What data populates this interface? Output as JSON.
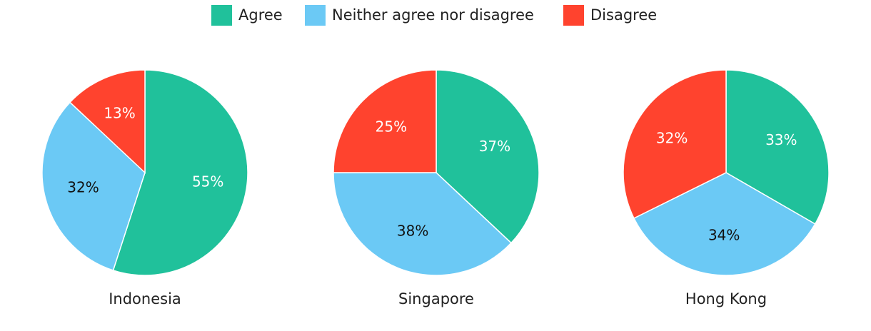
{
  "legend": {
    "categories": [
      "Agree",
      "Neither agree nor disagree",
      "Disagree"
    ],
    "colors": [
      "#20c19b",
      "#6bc9f5",
      "#ff432e"
    ]
  },
  "chart_data": [
    {
      "type": "pie",
      "title": "Indonesia",
      "values": [
        55,
        32,
        13
      ],
      "value_labels": [
        "55%",
        "32%",
        "13%"
      ]
    },
    {
      "type": "pie",
      "title": "Singapore",
      "values": [
        37,
        38,
        25
      ],
      "value_labels": [
        "37%",
        "38%",
        "25%"
      ]
    },
    {
      "type": "pie",
      "title": "Hong Kong",
      "values": [
        33,
        34,
        32
      ],
      "value_labels": [
        "33%",
        "34%",
        "32%"
      ]
    }
  ]
}
